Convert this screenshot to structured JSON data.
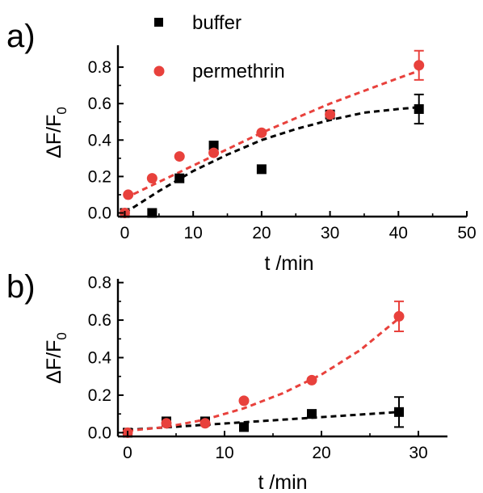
{
  "chart_data": [
    {
      "type": "scatter",
      "panel_label": "a)",
      "xlabel": "t /min",
      "ylabel_main": "ΔF/F",
      "ylabel_sub": "0",
      "xlim": [
        -1,
        50
      ],
      "ylim": [
        -0.02,
        0.92
      ],
      "xticks": [
        0,
        10,
        20,
        30,
        40,
        50
      ],
      "yticks": [
        0.0,
        0.2,
        0.4,
        0.6,
        0.8
      ],
      "ytick_labels": [
        "0.0",
        "0.2",
        "0.4",
        "0.6",
        "0.8"
      ],
      "legend_position": "top-center",
      "series": [
        {
          "name": "buffer",
          "marker": "square",
          "color": "#000000",
          "fit_color": "#000000",
          "x": [
            0,
            4,
            8,
            13,
            20,
            30,
            43
          ],
          "y": [
            0.0,
            0.0,
            0.19,
            0.37,
            0.24,
            0.54,
            0.57
          ],
          "error": [
            0,
            0,
            0,
            0,
            0,
            0,
            0.08
          ],
          "fit": [
            [
              0,
              0.0
            ],
            [
              5,
              0.12
            ],
            [
              10,
              0.23
            ],
            [
              15,
              0.32
            ],
            [
              20,
              0.4
            ],
            [
              25,
              0.46
            ],
            [
              30,
              0.51
            ],
            [
              35,
              0.55
            ],
            [
              40,
              0.57
            ],
            [
              43,
              0.58
            ]
          ]
        },
        {
          "name": "permethrin",
          "marker": "circle",
          "color": "#e8413c",
          "fit_color": "#e8413c",
          "x": [
            0,
            0.5,
            4,
            8,
            13,
            20,
            30,
            43
          ],
          "y": [
            0.0,
            0.1,
            0.19,
            0.31,
            0.33,
            0.44,
            0.54,
            0.81
          ],
          "error": [
            0,
            0,
            0,
            0,
            0,
            0,
            0,
            0.08
          ],
          "fit": [
            [
              0,
              0.08
            ],
            [
              5,
              0.17
            ],
            [
              10,
              0.26
            ],
            [
              15,
              0.35
            ],
            [
              20,
              0.44
            ],
            [
              25,
              0.52
            ],
            [
              30,
              0.6
            ],
            [
              35,
              0.67
            ],
            [
              40,
              0.74
            ],
            [
              43,
              0.78
            ]
          ]
        }
      ]
    },
    {
      "type": "scatter",
      "panel_label": "b)",
      "xlabel": "t /min",
      "ylabel_main": "ΔF/F",
      "ylabel_sub": "0",
      "xlim": [
        -1,
        33
      ],
      "ylim": [
        -0.02,
        0.82
      ],
      "xticks": [
        0,
        10,
        20,
        30
      ],
      "yticks": [
        0.0,
        0.2,
        0.4,
        0.6,
        0.8
      ],
      "ytick_labels": [
        "0.0",
        "0.2",
        "0.4",
        "0.6",
        "0.8"
      ],
      "series": [
        {
          "name": "buffer",
          "marker": "square",
          "color": "#000000",
          "fit_color": "#000000",
          "x": [
            0,
            4,
            8,
            12,
            19,
            28
          ],
          "y": [
            0.0,
            0.06,
            0.06,
            0.03,
            0.1,
            0.11
          ],
          "error": [
            0,
            0,
            0,
            0,
            0,
            0.08
          ],
          "fit": [
            [
              0,
              0.015
            ],
            [
              28,
              0.11
            ]
          ]
        },
        {
          "name": "permethrin",
          "marker": "circle",
          "color": "#e8413c",
          "fit_color": "#e8413c",
          "x": [
            0,
            4,
            8,
            12,
            19,
            28
          ],
          "y": [
            0.0,
            0.05,
            0.05,
            0.17,
            0.28,
            0.62
          ],
          "error": [
            0,
            0,
            0,
            0,
            0,
            0.08
          ],
          "fit": [
            [
              0,
              0.01
            ],
            [
              4,
              0.03
            ],
            [
              8,
              0.07
            ],
            [
              12,
              0.13
            ],
            [
              16,
              0.21
            ],
            [
              20,
              0.31
            ],
            [
              24,
              0.44
            ],
            [
              28,
              0.61
            ]
          ]
        }
      ]
    }
  ]
}
